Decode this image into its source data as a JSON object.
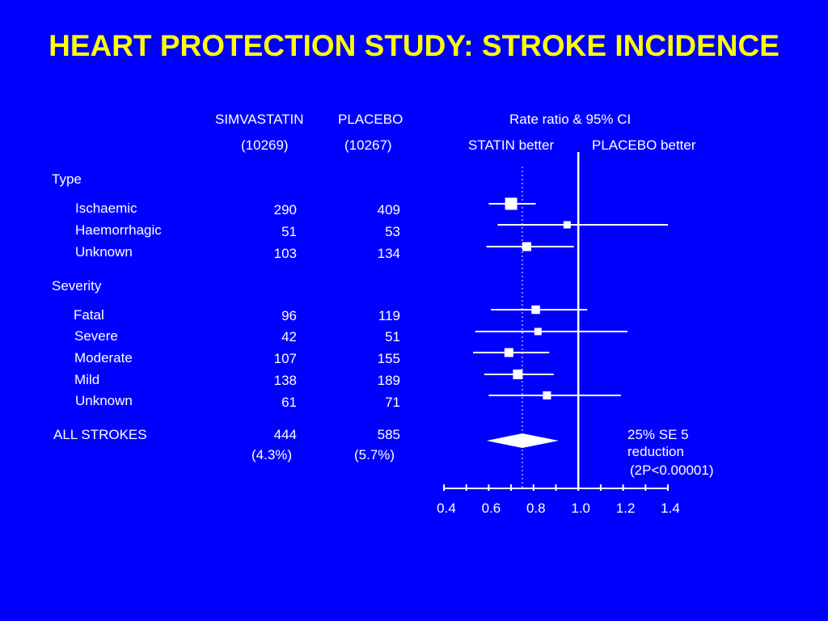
{
  "title": "HEART PROTECTION STUDY: STROKE INCIDENCE",
  "columns": {
    "simva_label": "SIMVASTATIN",
    "simva_n": "(10269)",
    "placebo_label": "PLACEBO",
    "placebo_n": "(10267)",
    "rr_label": "Rate ratio & 95% CI",
    "statin_better": "STATIN better",
    "placebo_better": "PLACEBO better"
  },
  "sections": {
    "type": "Type",
    "severity": "Severity"
  },
  "rows": [
    {
      "label": "Ischaemic",
      "simva": "290",
      "placebo": "409"
    },
    {
      "label": "Haemorrhagic",
      "simva": "51",
      "placebo": "53"
    },
    {
      "label": "Unknown",
      "simva": "103",
      "placebo": "134"
    },
    {
      "label": "Fatal",
      "simva": "96",
      "placebo": "119"
    },
    {
      "label": "Severe",
      "simva": "42",
      "placebo": "51"
    },
    {
      "label": "Moderate",
      "simva": "107",
      "placebo": "155"
    },
    {
      "label": "Mild",
      "simva": "138",
      "placebo": "189"
    },
    {
      "label": "Unknown",
      "simva": "61",
      "placebo": "71"
    }
  ],
  "total": {
    "label": "ALL STROKES",
    "simva": "444",
    "simva_pct": "(4.3%)",
    "placebo": "585",
    "placebo_pct": "(5.7%)",
    "result_line1": "25% SE 5",
    "result_line2": "reduction",
    "result_line3": "(2P<0.00001)"
  },
  "colors": {
    "background": "#0000ff",
    "title": "#ffff00",
    "text": "#ffffff"
  },
  "chart_data": {
    "type": "forest",
    "xlabel": "",
    "xlim": [
      0.4,
      1.4
    ],
    "xticks": [
      0.4,
      0.6,
      0.8,
      1.0,
      1.2,
      1.4
    ],
    "xtick_labels": [
      "0.4",
      "0.6",
      "0.8",
      "1.0",
      "1.2",
      "1.4"
    ],
    "null_line": 1.0,
    "overall_dashed_line": 0.75,
    "groups": [
      {
        "name": "Type",
        "items": [
          {
            "label": "Ischaemic",
            "estimate": 0.7,
            "ci": [
              0.6,
              0.81
            ],
            "weight": 0.9
          },
          {
            "label": "Haemorrhagic",
            "estimate": 0.95,
            "ci": [
              0.64,
              1.4
            ],
            "weight": 0.3
          },
          {
            "label": "Unknown",
            "estimate": 0.77,
            "ci": [
              0.59,
              0.98
            ],
            "weight": 0.5
          }
        ]
      },
      {
        "name": "Severity",
        "items": [
          {
            "label": "Fatal",
            "estimate": 0.81,
            "ci": [
              0.61,
              1.04
            ],
            "weight": 0.45
          },
          {
            "label": "Severe",
            "estimate": 0.82,
            "ci": [
              0.54,
              1.22
            ],
            "weight": 0.3
          },
          {
            "label": "Moderate",
            "estimate": 0.69,
            "ci": [
              0.53,
              0.87
            ],
            "weight": 0.5
          },
          {
            "label": "Mild",
            "estimate": 0.73,
            "ci": [
              0.58,
              0.89
            ],
            "weight": 0.6
          },
          {
            "label": "Unknown",
            "estimate": 0.86,
            "ci": [
              0.6,
              1.19
            ],
            "weight": 0.4
          }
        ]
      }
    ],
    "overall": {
      "label": "ALL STROKES",
      "estimate": 0.75,
      "ci": [
        0.67,
        0.84
      ]
    }
  }
}
